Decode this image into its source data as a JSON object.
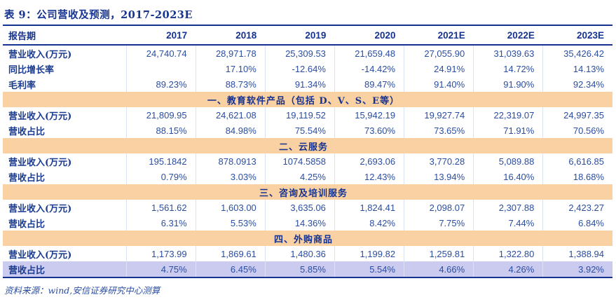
{
  "title": "表 9：公司营收及预测，2017-2023E",
  "footer": {
    "source": "资料来源：wind,安信证券研究中心测算"
  },
  "colors": {
    "navy": "#16338f",
    "number_blue": "#2b4ea1",
    "section_band": "#fad1a3",
    "highlight_row": "#cbcbef"
  },
  "table": {
    "header": [
      "报告期",
      "2017",
      "2018",
      "2019",
      "2020",
      "2021E",
      "2022E",
      "2023E"
    ],
    "rows": [
      {
        "type": "data",
        "label": "营业收入(万元)",
        "values": [
          "24,740.74",
          "28,971.78",
          "25,309.53",
          "21,659.48",
          "27,055.90",
          "31,039.63",
          "35,426.42"
        ]
      },
      {
        "type": "data",
        "label": "同比增长率",
        "values": [
          "",
          "17.10%",
          "-12.64%",
          "-14.42%",
          "24.91%",
          "14.72%",
          "14.13%"
        ]
      },
      {
        "type": "data",
        "label": "毛利率",
        "values": [
          "89.23%",
          "88.73%",
          "91.34%",
          "89.47%",
          "91.40%",
          "91.90%",
          "92.34%"
        ]
      },
      {
        "type": "section",
        "label": "一、教育软件产品（包括 D、V、S、E等）"
      },
      {
        "type": "data",
        "label": "营业收入(万元)",
        "values": [
          "21,809.95",
          "24,621.08",
          "19,119.52",
          "15,942.19",
          "19,927.74",
          "22,319.07",
          "24,997.35"
        ]
      },
      {
        "type": "data",
        "label": "营收占比",
        "values": [
          "88.15%",
          "84.98%",
          "75.54%",
          "73.60%",
          "73.65%",
          "71.91%",
          "70.56%"
        ]
      },
      {
        "type": "section",
        "label": "二、云服务"
      },
      {
        "type": "data",
        "label": "营业收入(万元)",
        "values": [
          "195.1842",
          "878.0913",
          "1074.5858",
          "2,693.06",
          "3,770.28",
          "5,089.88",
          "6,616.85"
        ]
      },
      {
        "type": "data",
        "label": "营收占比",
        "values": [
          "0.79%",
          "3.03%",
          "4.25%",
          "12.43%",
          "13.94%",
          "16.40%",
          "18.68%"
        ]
      },
      {
        "type": "section",
        "label": "三、咨询及培训服务"
      },
      {
        "type": "data",
        "label": "营业收入(万元)",
        "values": [
          "1,561.62",
          "1,603.00",
          "3,635.06",
          "1,824.41",
          "2,098.07",
          "2,307.88",
          "2,423.27"
        ]
      },
      {
        "type": "data",
        "label": "营收占比",
        "values": [
          "6.31%",
          "5.53%",
          "14.36%",
          "8.42%",
          "7.75%",
          "7.44%",
          "6.84%"
        ]
      },
      {
        "type": "section",
        "label": "四、外购商品"
      },
      {
        "type": "data",
        "label": "营业收入(万元)",
        "values": [
          "1,173.99",
          "1,869.61",
          "1,480.36",
          "1,199.82",
          "1,259.81",
          "1,322.80",
          "1,388.94"
        ]
      },
      {
        "type": "data",
        "label": "营收占比",
        "highlight": true,
        "values": [
          "4.75%",
          "6.45%",
          "5.85%",
          "5.54%",
          "4.66%",
          "4.26%",
          "3.92%"
        ]
      }
    ]
  }
}
